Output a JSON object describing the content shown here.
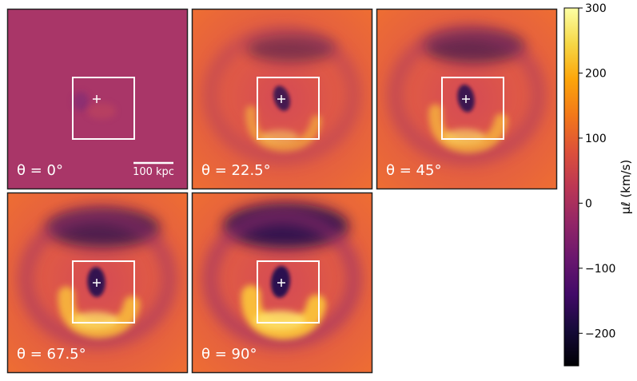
{
  "chart_data": {
    "type": "heatmap",
    "panels": [
      {
        "label": "θ = 0°",
        "theta_deg": 0,
        "scale_bar": "100 kpc"
      },
      {
        "label": "θ = 22.5°",
        "theta_deg": 22.5
      },
      {
        "label": "θ = 45°",
        "theta_deg": 45
      },
      {
        "label": "θ = 67.5°",
        "theta_deg": 67.5
      },
      {
        "label": "θ = 90°",
        "theta_deg": 90
      }
    ],
    "colorbar": {
      "label": "μℓ (km/s)",
      "colormap": "inferno",
      "vmin": -250,
      "vmax": 300,
      "ticks": [
        300,
        200,
        100,
        0,
        -100,
        -200
      ],
      "tick_labels": [
        "300",
        "200",
        "100",
        "0",
        "−100",
        "−200"
      ]
    },
    "colors": {
      "background_0": "#a93668",
      "outer_mid": "#e2584a",
      "outer_high": "#ee6b31",
      "dark_low": "#230f50",
      "bright_high": "#fbc23a",
      "box": "#ffffff"
    }
  }
}
